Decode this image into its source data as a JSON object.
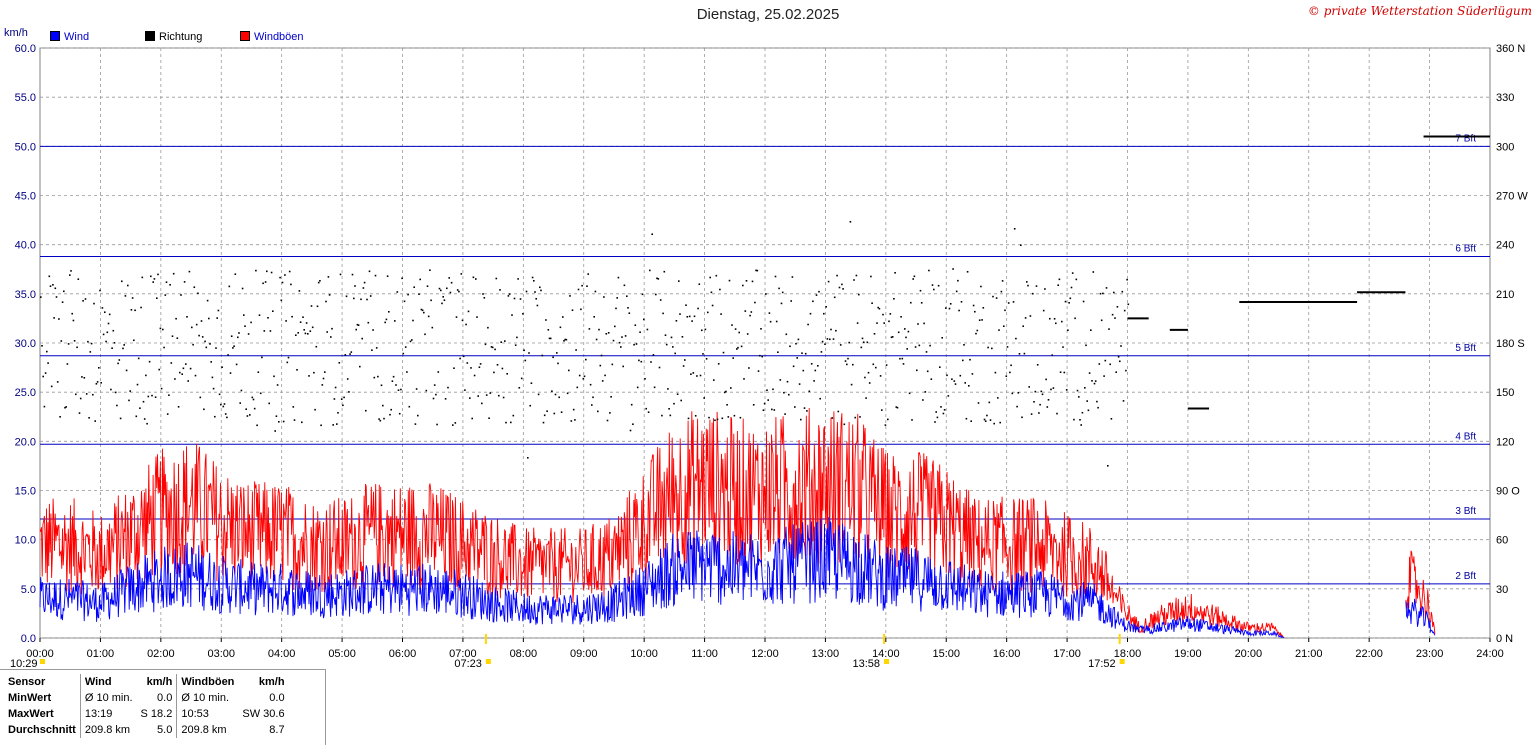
{
  "title": "Dienstag, 25.02.2025",
  "credit": "© private Wetterstation Süderlügum",
  "legend": [
    {
      "label": "Wind",
      "color": "#0000ff"
    },
    {
      "label": "Richtung",
      "color": "#000000"
    },
    {
      "label": "Windböen",
      "color": "#ff0000"
    }
  ],
  "chart_data": {
    "type": "line",
    "ylabel": "km/h",
    "ylim": [
      0,
      60
    ],
    "y_ticks": [
      "0.0",
      "5.0",
      "10.0",
      "15.0",
      "20.0",
      "25.0",
      "30.0",
      "35.0",
      "40.0",
      "45.0",
      "50.0",
      "55.0",
      "60.0"
    ],
    "y2_ticks": [
      "0 N",
      "30",
      "60",
      "90 O",
      "120",
      "150",
      "180 S",
      "210",
      "240",
      "270 W",
      "300",
      "330",
      "360 N"
    ],
    "y2lim": [
      0,
      360
    ],
    "x_ticks": [
      "00:00",
      "01:00",
      "02:00",
      "03:00",
      "04:00",
      "05:00",
      "06:00",
      "07:00",
      "08:00",
      "09:00",
      "10:00",
      "11:00",
      "12:00",
      "13:00",
      "14:00",
      "15:00",
      "16:00",
      "17:00",
      "18:00",
      "19:00",
      "20:00",
      "21:00",
      "22:00",
      "23:00",
      "24:00"
    ],
    "xlim_hours": [
      0,
      24
    ],
    "grid": true,
    "beaufort_lines": [
      {
        "label": "2 Bft",
        "kmh": 5.5
      },
      {
        "label": "3 Bft",
        "kmh": 12.1
      },
      {
        "label": "4 Bft",
        "kmh": 19.7
      },
      {
        "label": "5 Bft",
        "kmh": 28.7
      },
      {
        "label": "6 Bft",
        "kmh": 38.8
      },
      {
        "label": "7 Bft",
        "kmh": 50.0
      }
    ],
    "markers": [
      {
        "label": "10:29",
        "hour": 0.0
      },
      {
        "label": "07:23",
        "hour": 7.38
      },
      {
        "label": "13:58",
        "hour": 13.97
      },
      {
        "label": "17:52",
        "hour": 17.87
      }
    ],
    "wind_envelope": {
      "hours": [
        0,
        0.5,
        1,
        1.5,
        2,
        2.5,
        3,
        3.5,
        4,
        4.5,
        5,
        5.5,
        6,
        6.5,
        7,
        7.5,
        8,
        8.5,
        9,
        9.5,
        10,
        10.5,
        11,
        11.5,
        12,
        12.5,
        13,
        13.5,
        14,
        14.5,
        15,
        15.5,
        16,
        16.5,
        17,
        17.5,
        17.9,
        18.2,
        18.5,
        19,
        19.5,
        20,
        20.4,
        20.6,
        22.6,
        22.8,
        23,
        23.1
      ],
      "wind_mean": [
        4,
        4,
        3.5,
        5,
        6,
        6.5,
        5.5,
        5,
        5,
        4.5,
        4.5,
        5,
        5,
        5,
        4.5,
        3.5,
        3,
        3,
        3,
        3.5,
        5,
        7,
        7.5,
        7,
        7,
        7.5,
        8,
        7.5,
        6,
        6,
        5.5,
        4.5,
        4.5,
        4.5,
        4,
        3.5,
        1.5,
        0.8,
        1,
        1.5,
        1,
        0.5,
        0.5,
        0,
        3,
        2.5,
        1.5,
        0
      ],
      "gust_mean": [
        9,
        9,
        8,
        10,
        12,
        13,
        11,
        10,
        10,
        9,
        9,
        10,
        10,
        10,
        9,
        8,
        7,
        7,
        7,
        8,
        11,
        14,
        15,
        14,
        14,
        14.5,
        15,
        14.5,
        12,
        12,
        11,
        9,
        9,
        9,
        8,
        7,
        3,
        1,
        2,
        3,
        2,
        1,
        1,
        0,
        6,
        5,
        3,
        0
      ]
    },
    "direction_points_deg": {
      "note": "scattered 130-220 deg during day; steady segments late evening",
      "segments": [
        {
          "from_hour": 18.0,
          "to_hour": 18.35,
          "deg": 195
        },
        {
          "from_hour": 18.7,
          "to_hour": 19.0,
          "deg": 188
        },
        {
          "from_hour": 19.0,
          "to_hour": 19.35,
          "deg": 140
        },
        {
          "from_hour": 19.85,
          "to_hour": 20.05,
          "deg": 205
        },
        {
          "from_hour": 20.0,
          "to_hour": 21.8,
          "deg": 205
        },
        {
          "from_hour": 21.8,
          "to_hour": 22.6,
          "deg": 211
        },
        {
          "from_hour": 22.9,
          "to_hour": 24.0,
          "deg": 306
        }
      ]
    },
    "peak_wind": {
      "time": "13:19",
      "dir": "S",
      "kmh": 18.2
    },
    "peak_gust": {
      "time": "10:53",
      "dir": "SW",
      "kmh": 30.6
    }
  },
  "stats": {
    "headers": [
      "Sensor",
      "Wind",
      "km/h",
      "Windböen",
      "km/h"
    ],
    "rows": [
      [
        "MinWert",
        "Ø 10 min.",
        "0.0",
        "Ø 10 min.",
        "0.0"
      ],
      [
        "MaxWert",
        "13:19",
        "S 18.2",
        "10:53",
        "SW 30.6"
      ],
      [
        "Durchschnitt",
        "209.8 km",
        "5.0",
        "209.8 km",
        "8.7"
      ]
    ]
  }
}
